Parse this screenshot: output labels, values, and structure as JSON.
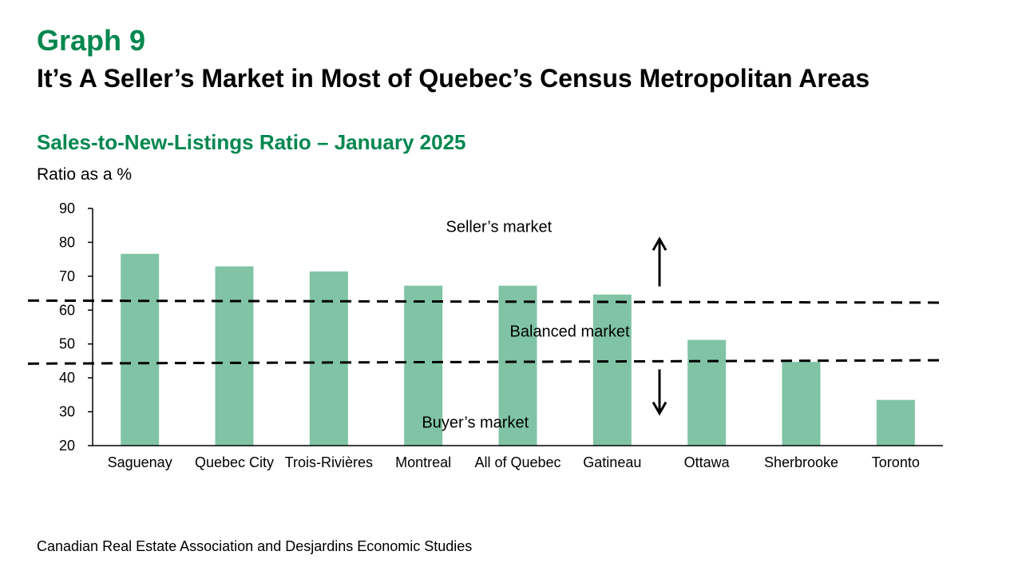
{
  "header": {
    "graph_label": "Graph 9",
    "title": "It’s A Seller’s Market in Most of Quebec’s Census Metropolitan Areas"
  },
  "footer": {
    "source": "Canadian Real Estate Association and Desjardins Economic Studies"
  },
  "colors": {
    "accent": "#00874e",
    "bar": "#80c4a5",
    "text": "#000000"
  },
  "chart_data": {
    "type": "bar",
    "title": "Sales-to-New-Listings Ratio – January 2025",
    "ylabel": "Ratio as a %",
    "xlabel": "",
    "ylim": [
      20,
      90
    ],
    "yticks": [
      20,
      30,
      40,
      50,
      60,
      70,
      80,
      90
    ],
    "grid": false,
    "categories": [
      "Saguenay",
      "Quebec City",
      "Trois-Rivières",
      "Montreal",
      "All of Quebec",
      "Gatineau",
      "Ottawa",
      "Sherbrooke",
      "Toronto"
    ],
    "values": [
      76.6,
      72.9,
      71.4,
      67.2,
      67.2,
      64.6,
      51.2,
      44.7,
      33.5
    ],
    "reference_lines": [
      {
        "name": "upper threshold",
        "start": 62.8,
        "end": 62.2,
        "style": "dashed"
      },
      {
        "name": "lower threshold",
        "start": 44.2,
        "end": 45.2,
        "style": "dashed"
      }
    ],
    "annotations": [
      {
        "text": "Seller’s market",
        "x": 4.3,
        "y": 84.5
      },
      {
        "text": "Balanced market",
        "x": 5.05,
        "y": 53.6
      },
      {
        "text": "Buyer’s market",
        "x": 4.05,
        "y": 26.7
      }
    ],
    "arrows": [
      {
        "direction": "up",
        "x": 6.0,
        "from": 67.0,
        "to": 80.5
      },
      {
        "direction": "down",
        "x": 6.0,
        "from": 42.5,
        "to": 30.0
      }
    ]
  }
}
